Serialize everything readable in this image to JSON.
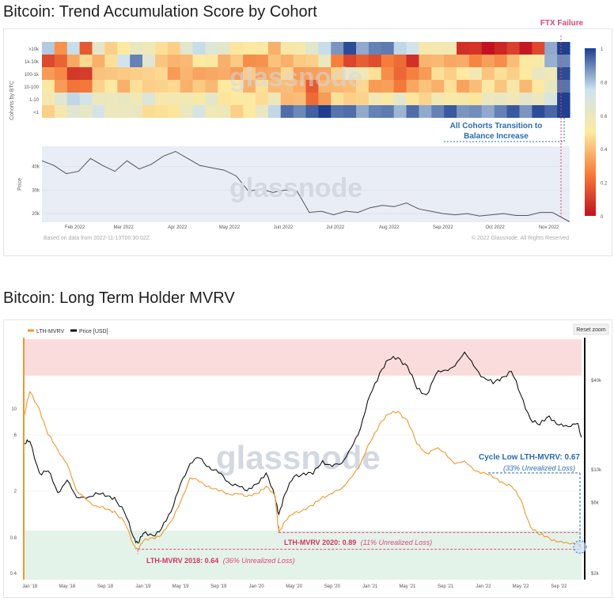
{
  "chart1": {
    "title": "Bitcoin: Trend Accumulation Score by Cohort",
    "watermark": "glassnode",
    "annotation_event": "FTX Failure",
    "annotation_text_1": "All Cohorts Transition to",
    "annotation_text_2": "Balance Increase",
    "heatmap_ylabel": "Cohorts by BTC",
    "price_ylabel": "Price",
    "footer_left": "Based on data from 2022-11-13T00:30:02Z",
    "footer_right": "© 2022 Glassnode. All Rights Reserved",
    "colorbar_ticks": [
      "1",
      "0.8",
      "0.6",
      "0.4",
      "0.2",
      "0"
    ],
    "colors": {
      "event_line": "#e0457b",
      "annotation": "#2b6cb0",
      "price_line": "#555555",
      "price_bg": "#e9edf6"
    }
  },
  "chart2": {
    "title": "Bitcoin: Long Term Holder MVRV",
    "watermark": "glassnode",
    "legend": [
      {
        "name": "LTH-MVRV",
        "color": "#f2982b"
      },
      {
        "name": "Price [USD]",
        "color": "#111111"
      }
    ],
    "reset_zoom": "Reset zoom",
    "annotations": {
      "cycle_low_label": "Cycle Low LTH-MVRV: 0.67",
      "cycle_low_sub": "(33% Unrealized Loss)",
      "y2020_label": "LTH-MVRV 2020: 0.89",
      "y2020_sub": "(11% Unrealized Loss)",
      "y2018_label": "LTH-MVRV 2018: 0.64",
      "y2018_sub": "(36% Unrealized Loss)"
    },
    "colors": {
      "mvrv": "#f2982b",
      "price": "#111111",
      "red_zone": "#fbdcdc",
      "green_zone": "#e3f3ea",
      "cycle_low": "#2b6cb0",
      "loss_line": "#e0457b"
    }
  },
  "chart_data": [
    {
      "type": "heatmap",
      "title": "Bitcoin: Trend Accumulation Score by Cohort",
      "ylabel": "Cohorts by BTC",
      "rows": [
        ">10k",
        "1k-10k",
        "100-1k",
        "10-100",
        "1-10",
        "<1"
      ],
      "xticks": [
        "Feb 2022",
        "Mar 2022",
        "Apr 2022",
        "May 2022",
        "Jun 2022",
        "Jul 2022",
        "Aug 2022",
        "Sep 2022",
        "Oct 2022",
        "Nov 2022"
      ],
      "colorscale": {
        "min": 0,
        "max": 1,
        "colors": [
          "#c1121f",
          "#f57c3a",
          "#fde9a0",
          "#cfe4ee",
          "#1f3f8f"
        ]
      },
      "scores": [
        [
          0.85,
          0.3,
          0.7,
          0.2,
          0.6,
          0.5,
          0.5,
          0.55,
          0.6,
          0.45,
          0.5,
          0.65,
          0.7,
          0.7,
          0.6,
          0.55,
          0.5,
          0.45,
          0.4,
          0.5,
          0.6,
          0.65,
          0.7,
          0.9,
          0.95,
          0.9,
          0.9,
          0.85,
          0.8,
          0.7,
          0.6,
          0.55,
          0.5,
          0.1,
          0.05,
          0.05,
          0.05,
          0.05,
          0.05,
          0.1,
          0.9,
          1.0
        ],
        [
          0.1,
          0.25,
          0.35,
          0.4,
          0.4,
          0.45,
          0.8,
          0.9,
          0.6,
          0.45,
          0.35,
          0.45,
          0.5,
          0.45,
          0.4,
          0.4,
          0.35,
          0.3,
          0.35,
          0.4,
          0.4,
          0.5,
          0.6,
          0.2,
          0.15,
          0.15,
          0.2,
          0.25,
          0.15,
          0.1,
          0.35,
          0.45,
          0.35,
          0.3,
          0.3,
          0.3,
          0.35,
          0.4,
          0.45,
          0.55,
          0.8,
          0.95
        ],
        [
          0.35,
          0.25,
          0.15,
          0.1,
          0.35,
          0.45,
          0.4,
          0.5,
          0.45,
          0.4,
          0.35,
          0.35,
          0.4,
          0.35,
          0.3,
          0.35,
          0.4,
          0.4,
          0.35,
          0.4,
          0.35,
          0.3,
          0.4,
          0.45,
          0.55,
          0.6,
          0.45,
          0.35,
          0.2,
          0.2,
          0.35,
          0.45,
          0.5,
          0.5,
          0.5,
          0.45,
          0.45,
          0.5,
          0.5,
          0.55,
          0.6,
          0.95
        ],
        [
          0.45,
          0.35,
          0.2,
          0.3,
          0.45,
          0.45,
          0.4,
          0.45,
          0.5,
          0.45,
          0.4,
          0.4,
          0.4,
          0.45,
          0.5,
          0.45,
          0.4,
          0.45,
          0.45,
          0.4,
          0.3,
          0.2,
          0.35,
          0.45,
          0.4,
          0.4,
          0.35,
          0.3,
          0.3,
          0.35,
          0.35,
          0.4,
          0.45,
          0.4,
          0.4,
          0.45,
          0.45,
          0.5,
          0.45,
          0.5,
          0.55,
          0.95
        ],
        [
          0.55,
          0.6,
          0.8,
          0.7,
          0.65,
          0.6,
          0.55,
          0.6,
          0.65,
          0.6,
          0.55,
          0.5,
          0.55,
          0.6,
          0.55,
          0.5,
          0.45,
          0.5,
          0.55,
          0.45,
          0.4,
          0.15,
          0.35,
          0.45,
          0.5,
          0.45,
          0.5,
          0.55,
          0.6,
          0.55,
          0.45,
          0.5,
          0.55,
          0.5,
          0.55,
          0.6,
          0.55,
          0.6,
          0.6,
          0.65,
          0.7,
          0.95
        ],
        [
          0.5,
          0.55,
          0.6,
          0.65,
          0.7,
          0.65,
          0.6,
          0.55,
          0.5,
          0.45,
          0.55,
          0.6,
          0.65,
          0.6,
          0.55,
          0.5,
          0.5,
          0.55,
          0.8,
          0.9,
          0.95,
          0.95,
          0.95,
          0.95,
          0.9,
          0.9,
          0.9,
          0.85,
          0.85,
          0.9,
          0.9,
          0.9,
          0.9,
          0.9,
          0.85,
          0.9,
          0.9,
          0.9,
          0.9,
          0.95,
          1.0,
          1.0
        ]
      ],
      "price": {
        "ylabel": "Price",
        "yticks": [
          "20k",
          "30k",
          "40k"
        ],
        "ylim": [
          17000,
          48000
        ],
        "dates": [
          "2022-01-13",
          "2022-01-20",
          "2022-01-27",
          "2022-02-03",
          "2022-02-10",
          "2022-02-17",
          "2022-02-24",
          "2022-03-03",
          "2022-03-10",
          "2022-03-17",
          "2022-03-24",
          "2022-03-31",
          "2022-04-07",
          "2022-04-14",
          "2022-04-21",
          "2022-04-28",
          "2022-05-05",
          "2022-05-12",
          "2022-05-19",
          "2022-05-26",
          "2022-06-02",
          "2022-06-09",
          "2022-06-16",
          "2022-06-23",
          "2022-06-30",
          "2022-07-07",
          "2022-07-14",
          "2022-07-21",
          "2022-07-28",
          "2022-08-04",
          "2022-08-11",
          "2022-08-18",
          "2022-08-25",
          "2022-09-01",
          "2022-09-08",
          "2022-09-15",
          "2022-09-22",
          "2022-09-29",
          "2022-10-06",
          "2022-10-13",
          "2022-10-20",
          "2022-10-27",
          "2022-11-03",
          "2022-11-08",
          "2022-11-13"
        ],
        "values": [
          42500,
          40500,
          37000,
          38000,
          43500,
          40500,
          38000,
          42500,
          39000,
          41000,
          44500,
          46500,
          43500,
          40500,
          39500,
          38500,
          36000,
          29500,
          30500,
          29000,
          30000,
          29500,
          20500,
          21000,
          19500,
          21000,
          20500,
          22500,
          23500,
          23000,
          24500,
          22000,
          21000,
          20000,
          19500,
          20000,
          19000,
          19500,
          20000,
          19200,
          19200,
          20500,
          20500,
          18500,
          16500
        ]
      },
      "event": {
        "label": "FTX Failure",
        "date": "2022-11-08"
      }
    },
    {
      "type": "line",
      "title": "Bitcoin: Long Term Holder MVRV",
      "xticks": [
        "Jan '18",
        "May '18",
        "Sep '18",
        "Jan '19",
        "May '19",
        "Sep '19",
        "Jan '20",
        "May '20",
        "Sep '20",
        "Jan '21",
        "May '21",
        "Sep '21",
        "Jan '22",
        "May '22",
        "Sep '22"
      ],
      "y_left": {
        "scale": "log",
        "ticks": [
          "0.4",
          "0.8",
          "2",
          "6",
          "10"
        ]
      },
      "y_right": {
        "scale": "log",
        "ticks": [
          "$2k",
          "$6k",
          "$10k",
          "$40k"
        ]
      },
      "zones": [
        {
          "name": "high",
          "color": "#fbdcdc"
        },
        {
          "name": "low",
          "color": "#e3f3ea",
          "below": 1.0
        }
      ],
      "dates": [
        "2017-12-15",
        "2018-01-01",
        "2018-02-01",
        "2018-03-01",
        "2018-04-01",
        "2018-05-01",
        "2018-06-01",
        "2018-07-01",
        "2018-08-01",
        "2018-09-01",
        "2018-10-01",
        "2018-11-01",
        "2018-12-01",
        "2018-12-15",
        "2019-01-01",
        "2019-02-01",
        "2019-03-01",
        "2019-04-01",
        "2019-05-01",
        "2019-06-01",
        "2019-07-01",
        "2019-08-01",
        "2019-09-01",
        "2019-10-01",
        "2019-11-01",
        "2019-12-01",
        "2020-01-01",
        "2020-02-01",
        "2020-03-01",
        "2020-03-13",
        "2020-04-01",
        "2020-05-01",
        "2020-06-01",
        "2020-07-01",
        "2020-08-01",
        "2020-09-01",
        "2020-10-01",
        "2020-11-01",
        "2020-12-01",
        "2021-01-01",
        "2021-02-01",
        "2021-03-01",
        "2021-04-01",
        "2021-05-01",
        "2021-06-01",
        "2021-07-01",
        "2021-08-01",
        "2021-09-01",
        "2021-10-01",
        "2021-11-01",
        "2021-12-01",
        "2022-01-01",
        "2022-02-01",
        "2022-03-01",
        "2022-04-01",
        "2022-05-01",
        "2022-06-01",
        "2022-07-01",
        "2022-08-01",
        "2022-09-01",
        "2022-10-01",
        "2022-11-01",
        "2022-11-13"
      ],
      "series": [
        {
          "name": "LTH-MVRV",
          "values": [
            9,
            14,
            10,
            6,
            4.5,
            3.4,
            2,
            1.7,
            1.5,
            1.4,
            1.35,
            1.1,
            0.7,
            0.64,
            0.75,
            0.8,
            0.85,
            1.1,
            1.6,
            2.6,
            2.4,
            2.2,
            2.0,
            1.9,
            1.9,
            1.8,
            1.9,
            2.2,
            1.8,
            0.89,
            1.1,
            1.3,
            1.4,
            1.5,
            1.8,
            1.9,
            2.1,
            2.6,
            3.4,
            5.2,
            7.5,
            9,
            9.5,
            8,
            5,
            4.2,
            4.6,
            4.2,
            3.4,
            3.6,
            3,
            2.9,
            2.6,
            2.4,
            2.2,
            1.7,
            1.0,
            0.85,
            0.8,
            0.74,
            0.72,
            0.71,
            0.67
          ]
        },
        {
          "name": "Price [USD]",
          "values": [
            15000,
            15500,
            9500,
            9800,
            7000,
            8500,
            6500,
            6400,
            7000,
            6600,
            6500,
            5200,
            3500,
            3200,
            3700,
            3600,
            4000,
            5200,
            8000,
            11000,
            12000,
            10500,
            9500,
            8300,
            7800,
            7200,
            8000,
            9500,
            6500,
            5000,
            6800,
            9000,
            9500,
            9300,
            11500,
            10500,
            11000,
            14000,
            19000,
            32000,
            45000,
            55000,
            57000,
            50000,
            35000,
            32000,
            44000,
            47000,
            50000,
            62000,
            50000,
            42000,
            38000,
            42000,
            46000,
            32000,
            22000,
            20000,
            23000,
            20000,
            19500,
            20500,
            16500
          ]
        }
      ],
      "annotations": [
        {
          "label": "Cycle Low LTH-MVRV: 0.67",
          "detail": "(33% Unrealized Loss)",
          "value": 0.67
        },
        {
          "label": "LTH-MVRV 2020: 0.89",
          "detail": "(11% Unrealized Loss)",
          "value": 0.89
        },
        {
          "label": "LTH-MVRV 2018: 0.64",
          "detail": "(36% Unrealized Loss)",
          "value": 0.64
        }
      ]
    }
  ]
}
